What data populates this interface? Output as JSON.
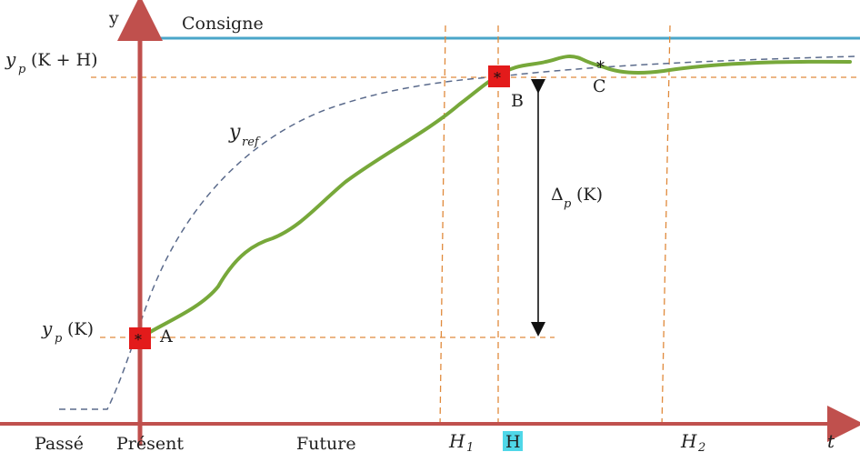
{
  "axis": {
    "y_label": "y",
    "t_label": "t"
  },
  "consigne_label": "Consigne",
  "levels": {
    "yp_k_label": "(K)",
    "yp_k_symbol": "y",
    "yp_k_sub": "p",
    "yp_kh_label": "(K + H)",
    "yp_kh_symbol": "y",
    "yp_kh_sub": "p"
  },
  "yref": {
    "symbol": "y",
    "sub": "ref"
  },
  "delta": {
    "symbol": "Δ",
    "sub": "p",
    "arg": "(K)"
  },
  "points": {
    "a_label": "A",
    "b_label": "B",
    "c_label": "C"
  },
  "horizons": {
    "h1_symbol": "H",
    "h1_sub": "1",
    "h_label": "H",
    "h2_symbol": "H",
    "h2_sub": "2"
  },
  "timeline": {
    "past_label": "Passé",
    "present_label": "Présent",
    "future_label": "Future"
  },
  "colors": {
    "axis": "#c0504d",
    "consigne": "#4aa6c9",
    "output": "#77a83a",
    "reference": "#5b6b8c",
    "guides": "#e08a3c",
    "marker": "#e31b1b",
    "highlight": "#4fd7e8"
  }
}
